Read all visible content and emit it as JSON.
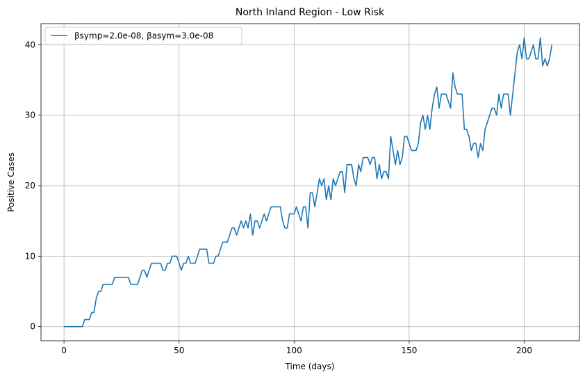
{
  "chart_data": {
    "type": "line",
    "title": "North Inland Region - Low Risk",
    "xlabel": "Time (days)",
    "ylabel": "Positive Cases",
    "xlim": [
      -10,
      224
    ],
    "ylim": [
      -2,
      43
    ],
    "xticks": [
      0,
      50,
      100,
      150,
      200
    ],
    "yticks": [
      0,
      10,
      20,
      30,
      40
    ],
    "grid": true,
    "legend": "top-left",
    "series": [
      {
        "name": "βsymp=2.0e-08, βasym=3.0e-08",
        "color": "#1f77b4",
        "x": [
          0,
          1,
          2,
          3,
          4,
          5,
          6,
          7,
          8,
          9,
          10,
          11,
          12,
          13,
          14,
          15,
          16,
          17,
          18,
          19,
          20,
          21,
          22,
          23,
          24,
          25,
          26,
          27,
          28,
          29,
          30,
          31,
          32,
          33,
          34,
          35,
          36,
          37,
          38,
          39,
          40,
          41,
          42,
          43,
          44,
          45,
          46,
          47,
          48,
          49,
          50,
          51,
          52,
          53,
          54,
          55,
          56,
          57,
          58,
          59,
          60,
          61,
          62,
          63,
          64,
          65,
          66,
          67,
          68,
          69,
          70,
          71,
          72,
          73,
          74,
          75,
          76,
          77,
          78,
          79,
          80,
          81,
          82,
          83,
          84,
          85,
          86,
          87,
          88,
          89,
          90,
          91,
          92,
          93,
          94,
          95,
          96,
          97,
          98,
          99,
          100,
          101,
          102,
          103,
          104,
          105,
          106,
          107,
          108,
          109,
          110,
          111,
          112,
          113,
          114,
          115,
          116,
          117,
          118,
          119,
          120,
          121,
          122,
          123,
          124,
          125,
          126,
          127,
          128,
          129,
          130,
          131,
          132,
          133,
          134,
          135,
          136,
          137,
          138,
          139,
          140,
          141,
          142,
          143,
          144,
          145,
          146,
          147,
          148,
          149,
          150,
          151,
          152,
          153,
          154,
          155,
          156,
          157,
          158,
          159,
          160,
          161,
          162,
          163,
          164,
          165,
          166,
          167,
          168,
          169,
          170,
          171,
          172,
          173,
          174,
          175,
          176,
          177,
          178,
          179,
          180,
          181,
          182,
          183,
          184,
          185,
          186,
          187,
          188,
          189,
          190,
          191,
          192,
          193,
          194,
          195,
          196,
          197,
          198,
          199,
          200,
          201,
          202,
          203,
          204,
          205,
          206,
          207,
          208,
          209,
          210,
          211,
          212
        ],
        "y": [
          0,
          0,
          0,
          0,
          0,
          0,
          0,
          0,
          0,
          1,
          1,
          1,
          2,
          2,
          4,
          5,
          5,
          6,
          6,
          6,
          6,
          6,
          7,
          7,
          7,
          7,
          7,
          7,
          7,
          6,
          6,
          6,
          6,
          7,
          8,
          8,
          7,
          8,
          9,
          9,
          9,
          9,
          9,
          8,
          8,
          9,
          9,
          10,
          10,
          10,
          9,
          8,
          9,
          9,
          10,
          9,
          9,
          9,
          10,
          11,
          11,
          11,
          11,
          9,
          9,
          9,
          10,
          10,
          11,
          12,
          12,
          12,
          13,
          14,
          14,
          13,
          14,
          15,
          14,
          15,
          14,
          16,
          13,
          15,
          15,
          14,
          15,
          16,
          15,
          16,
          17,
          17,
          17,
          17,
          17,
          15,
          14,
          14,
          16,
          16,
          16,
          17,
          16,
          15,
          17,
          17,
          14,
          19,
          19,
          17,
          19,
          21,
          20,
          21,
          18,
          20,
          18,
          21,
          20,
          21,
          22,
          22,
          19,
          23,
          23,
          23,
          21,
          20,
          23,
          22,
          24,
          24,
          24,
          23,
          24,
          24,
          21,
          23,
          21,
          22,
          22,
          21,
          27,
          25,
          23,
          25,
          23,
          24,
          27,
          27,
          26,
          25,
          25,
          25,
          26,
          29,
          30,
          28,
          30,
          28,
          31,
          33,
          34,
          31,
          33,
          33,
          33,
          32,
          31,
          36,
          34,
          33,
          33,
          33,
          28,
          28,
          27,
          25,
          26,
          26,
          24,
          26,
          25,
          28,
          29,
          30,
          31,
          31,
          30,
          33,
          31,
          33,
          33,
          33,
          30,
          33,
          36,
          39,
          40,
          38,
          41,
          38,
          38,
          39,
          40,
          38,
          38,
          41,
          37,
          38,
          37,
          38,
          40
        ]
      }
    ]
  }
}
